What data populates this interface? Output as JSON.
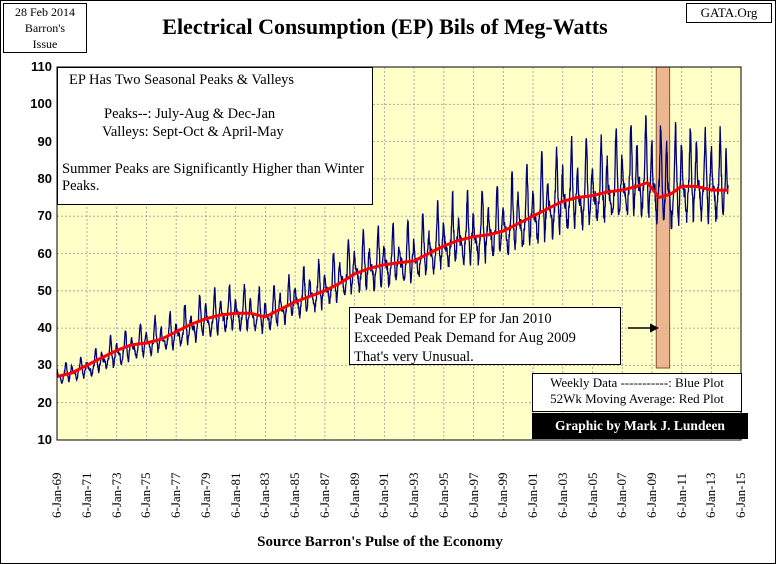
{
  "header": {
    "date_line1": "28 Feb 2014",
    "date_line2": "Barron's",
    "date_line3": "Issue",
    "brand": "GATA.Org"
  },
  "colors": {
    "plot_background": "#ffffc8",
    "weekly_line": "#00007a",
    "moving_average": "#ff0000",
    "highlight_band": "#e8b08a",
    "grid": "#9a9a9a"
  },
  "annotations": {
    "note_title": "EP Has Two Seasonal Peaks & Valleys",
    "note_peaks": "Peaks--: July-Aug & Dec-Jan",
    "note_valleys": "Valleys: Sept-Oct & April-May",
    "note_summer": "Summer Peaks are Significantly Higher than Winter Peaks.",
    "peak_line1": "Peak Demand for EP for Jan 2010",
    "peak_line2": "Exceeded Peak Demand for Aug 2009",
    "peak_line3": "That's very Unusual.",
    "legend_line1": "Weekly Data -----------: Blue Plot",
    "legend_line2": "52Wk Moving Average: Red Plot",
    "credit": "Graphic by Mark J. Lundeen"
  },
  "chart_data": {
    "type": "line",
    "title": "Electrical Consumption (EP) Bils of Meg-Watts",
    "xlabel": "Source Barron's Pulse of the Economy",
    "ylabel": "",
    "ylim": [
      10,
      110
    ],
    "xlim": [
      1969.0,
      2015.0
    ],
    "yticks": [
      "10",
      "20",
      "30",
      "40",
      "50",
      "60",
      "70",
      "80",
      "90",
      "100",
      "110"
    ],
    "xticks": [
      "6-Jan-69",
      "6-Jan-71",
      "6-Jan-73",
      "6-Jan-75",
      "6-Jan-77",
      "6-Jan-79",
      "6-Jan-81",
      "6-Jan-83",
      "6-Jan-85",
      "6-Jan-87",
      "6-Jan-89",
      "6-Jan-91",
      "6-Jan-93",
      "6-Jan-95",
      "6-Jan-97",
      "6-Jan-99",
      "6-Jan-01",
      "6-Jan-03",
      "6-Jan-05",
      "6-Jan-07",
      "6-Jan-09",
      "6-Jan-11",
      "6-Jan-13",
      "6-Jan-15"
    ],
    "highlight_range": [
      2009.3,
      2010.2
    ],
    "series": [
      {
        "name": "Weekly Data",
        "color": "#00007a",
        "note": "Weekly values approximated as trend plus seasonal oscillation (summer peak Jul-Aug, winter peak Dec-Jan)",
        "trend_x": [
          1969.0,
          1971,
          1973,
          1975,
          1977,
          1979,
          1981,
          1983,
          1985,
          1987,
          1989,
          1991,
          1993,
          1995,
          1997,
          1999,
          2001,
          2003,
          2005,
          2007,
          2008.5,
          2010,
          2012,
          2014.0
        ],
        "trend_y": [
          27,
          29,
          33,
          36,
          38,
          42,
          44,
          43,
          47,
          50,
          55,
          57,
          58,
          62,
          64,
          66,
          70,
          74,
          75,
          77,
          79,
          76,
          78,
          77
        ],
        "summer_amp": [
          3,
          4,
          6,
          6,
          7,
          8,
          8,
          7,
          8,
          9,
          10,
          11,
          12,
          13,
          13,
          14,
          15,
          16,
          16,
          17,
          18,
          17,
          16,
          15
        ],
        "winter_amp": [
          2,
          2,
          3,
          3,
          3,
          4,
          4,
          4,
          4,
          4,
          5,
          5,
          5,
          6,
          6,
          7,
          7,
          8,
          8,
          9,
          10,
          14,
          12,
          10
        ],
        "valley_amp": [
          2,
          2,
          3,
          3,
          3,
          4,
          4,
          4,
          4,
          4,
          5,
          5,
          5,
          5,
          6,
          6,
          7,
          7,
          7,
          7,
          8,
          8,
          8,
          8
        ],
        "x_end": 2014.15
      },
      {
        "name": "52Wk Moving Average",
        "color": "#ff0000",
        "x": [
          1969.0,
          1970,
          1971,
          1972,
          1973,
          1974,
          1975,
          1976,
          1977,
          1978,
          1979,
          1980,
          1981,
          1982,
          1983,
          1984,
          1985,
          1986,
          1987,
          1988,
          1989,
          1990,
          1991,
          1992,
          1993,
          1994,
          1995,
          1996,
          1997,
          1998,
          1999,
          2000,
          2001,
          2002,
          2003,
          2004,
          2005,
          2006,
          2007,
          2008,
          2008.7,
          2009.5,
          2010.3,
          2011,
          2012,
          2013,
          2014.15
        ],
        "values": [
          27,
          28,
          30,
          32,
          34,
          35.5,
          36,
          37,
          39,
          41,
          42.5,
          43.5,
          44,
          44,
          43,
          45,
          47,
          48.5,
          50,
          52,
          54.5,
          56,
          57,
          57.5,
          58,
          60,
          62,
          63.5,
          64.5,
          65,
          66,
          68,
          70,
          72,
          74,
          75,
          75.5,
          76.5,
          77,
          78,
          79,
          75,
          76,
          78,
          78,
          77,
          77
        ]
      }
    ]
  },
  "source_text": "Source Barron's Pulse of the Economy"
}
